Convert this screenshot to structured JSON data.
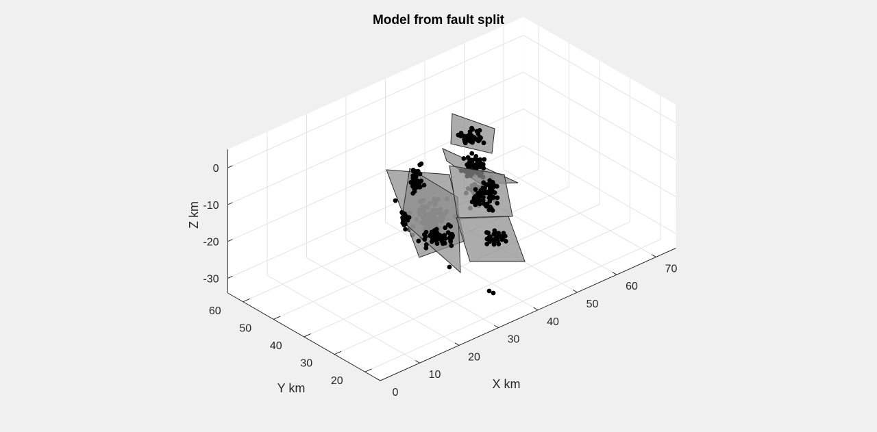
{
  "chart_data": {
    "type": "scatter3d",
    "title": "Model from fault split",
    "xlabel": "X km",
    "ylabel": "Y km",
    "zlabel": "Z km",
    "x_ticks": [
      "0",
      "10",
      "20",
      "30",
      "40",
      "50",
      "60",
      "70"
    ],
    "y_ticks": [
      "20",
      "30",
      "40",
      "50",
      "60"
    ],
    "z_ticks": [
      "0",
      "-10",
      "-20",
      "-30"
    ],
    "grid": true,
    "colors": {
      "background": "#f0f0f0",
      "axes_box": "#ffffff",
      "grid": "#e3e3e3",
      "axis": "#262626",
      "fault_plane": "#8c8c8c",
      "event_point": "#000000",
      "event_point_deep": "#606060"
    },
    "fault_planes": 5,
    "event_count": 450
  }
}
